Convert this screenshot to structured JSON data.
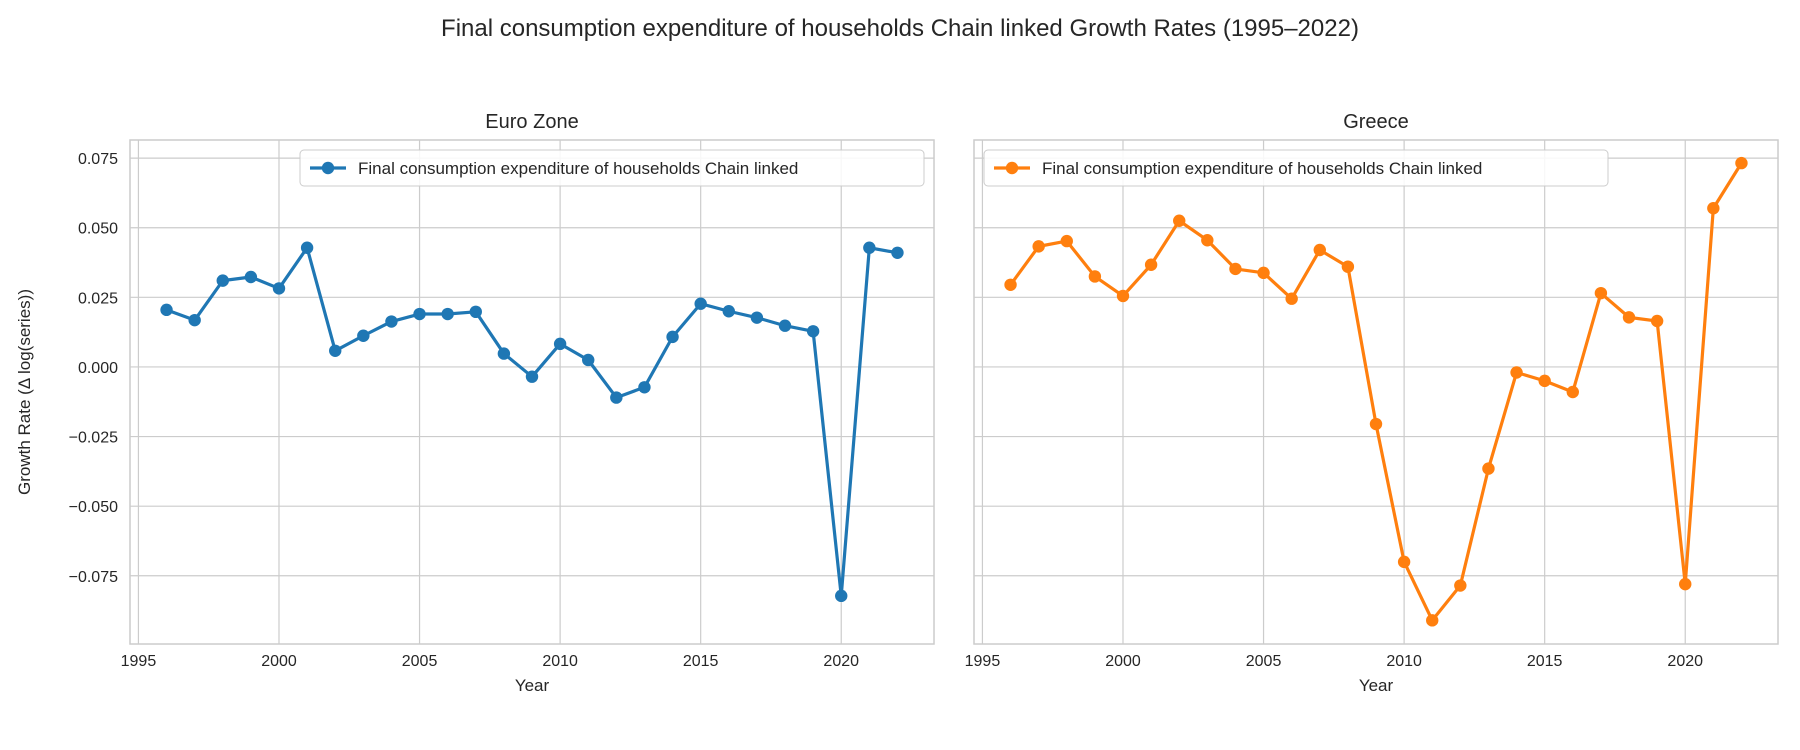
{
  "figure": {
    "title": "Final consumption expenditure of households Chain linked Growth Rates (1995–2022)"
  },
  "chart_data": [
    {
      "type": "line",
      "title": "Euro Zone",
      "xlabel": "Year",
      "ylabel": "Growth Rate (Δ log(series))",
      "xlim": [
        1994.7,
        2023.3
      ],
      "ylim": [
        -0.0995,
        0.0815
      ],
      "xticks": [
        1995,
        2000,
        2005,
        2010,
        2015,
        2020
      ],
      "xtick_labels": [
        "1995",
        "2000",
        "2005",
        "2010",
        "2015",
        "2020"
      ],
      "yticks": [
        -0.075,
        -0.05,
        -0.025,
        0.0,
        0.025,
        0.05,
        0.075
      ],
      "ytick_labels": [
        "−0.075",
        "−0.050",
        "−0.025",
        "0.000",
        "0.025",
        "0.050",
        "0.075"
      ],
      "grid": true,
      "legend_position": "top-right",
      "color": "#1f77b4",
      "series": [
        {
          "name": "Final consumption expenditure of households Chain linked",
          "x": [
            1996,
            1997,
            1998,
            1999,
            2000,
            2001,
            2002,
            2003,
            2004,
            2005,
            2006,
            2007,
            2008,
            2009,
            2010,
            2011,
            2012,
            2013,
            2014,
            2015,
            2016,
            2017,
            2018,
            2019,
            2020,
            2021,
            2022
          ],
          "y": [
            0.0205,
            0.0168,
            0.031,
            0.0323,
            0.0282,
            0.0428,
            0.0058,
            0.0112,
            0.0163,
            0.019,
            0.019,
            0.0198,
            0.0048,
            -0.0035,
            0.0083,
            0.0025,
            -0.011,
            -0.0073,
            0.0108,
            0.0227,
            0.02,
            0.0177,
            0.0148,
            0.0128,
            -0.0822,
            0.0428,
            0.041
          ]
        }
      ]
    },
    {
      "type": "line",
      "title": "Greece",
      "xlabel": "Year",
      "ylabel": "",
      "xlim": [
        1994.7,
        2023.3
      ],
      "ylim": [
        -0.0995,
        0.0815
      ],
      "xticks": [
        1995,
        2000,
        2005,
        2010,
        2015,
        2020
      ],
      "xtick_labels": [
        "1995",
        "2000",
        "2005",
        "2010",
        "2015",
        "2020"
      ],
      "yticks": [
        -0.075,
        -0.05,
        -0.025,
        0.0,
        0.025,
        0.05,
        0.075
      ],
      "ytick_labels": [],
      "grid": true,
      "legend_position": "top-left",
      "color": "#ff7f0e",
      "series": [
        {
          "name": "Final consumption expenditure of households Chain linked",
          "x": [
            1996,
            1997,
            1998,
            1999,
            2000,
            2001,
            2002,
            2003,
            2004,
            2005,
            2006,
            2007,
            2008,
            2009,
            2010,
            2011,
            2012,
            2013,
            2014,
            2015,
            2016,
            2017,
            2018,
            2019,
            2020,
            2021,
            2022
          ],
          "y": [
            0.0295,
            0.0433,
            0.0452,
            0.0325,
            0.0255,
            0.0367,
            0.0525,
            0.0455,
            0.0352,
            0.0338,
            0.0245,
            0.042,
            0.036,
            -0.0205,
            -0.07,
            -0.091,
            -0.0785,
            -0.0365,
            -0.002,
            -0.005,
            -0.009,
            0.0265,
            0.0178,
            0.0165,
            -0.078,
            0.057,
            0.0732
          ]
        }
      ]
    }
  ]
}
